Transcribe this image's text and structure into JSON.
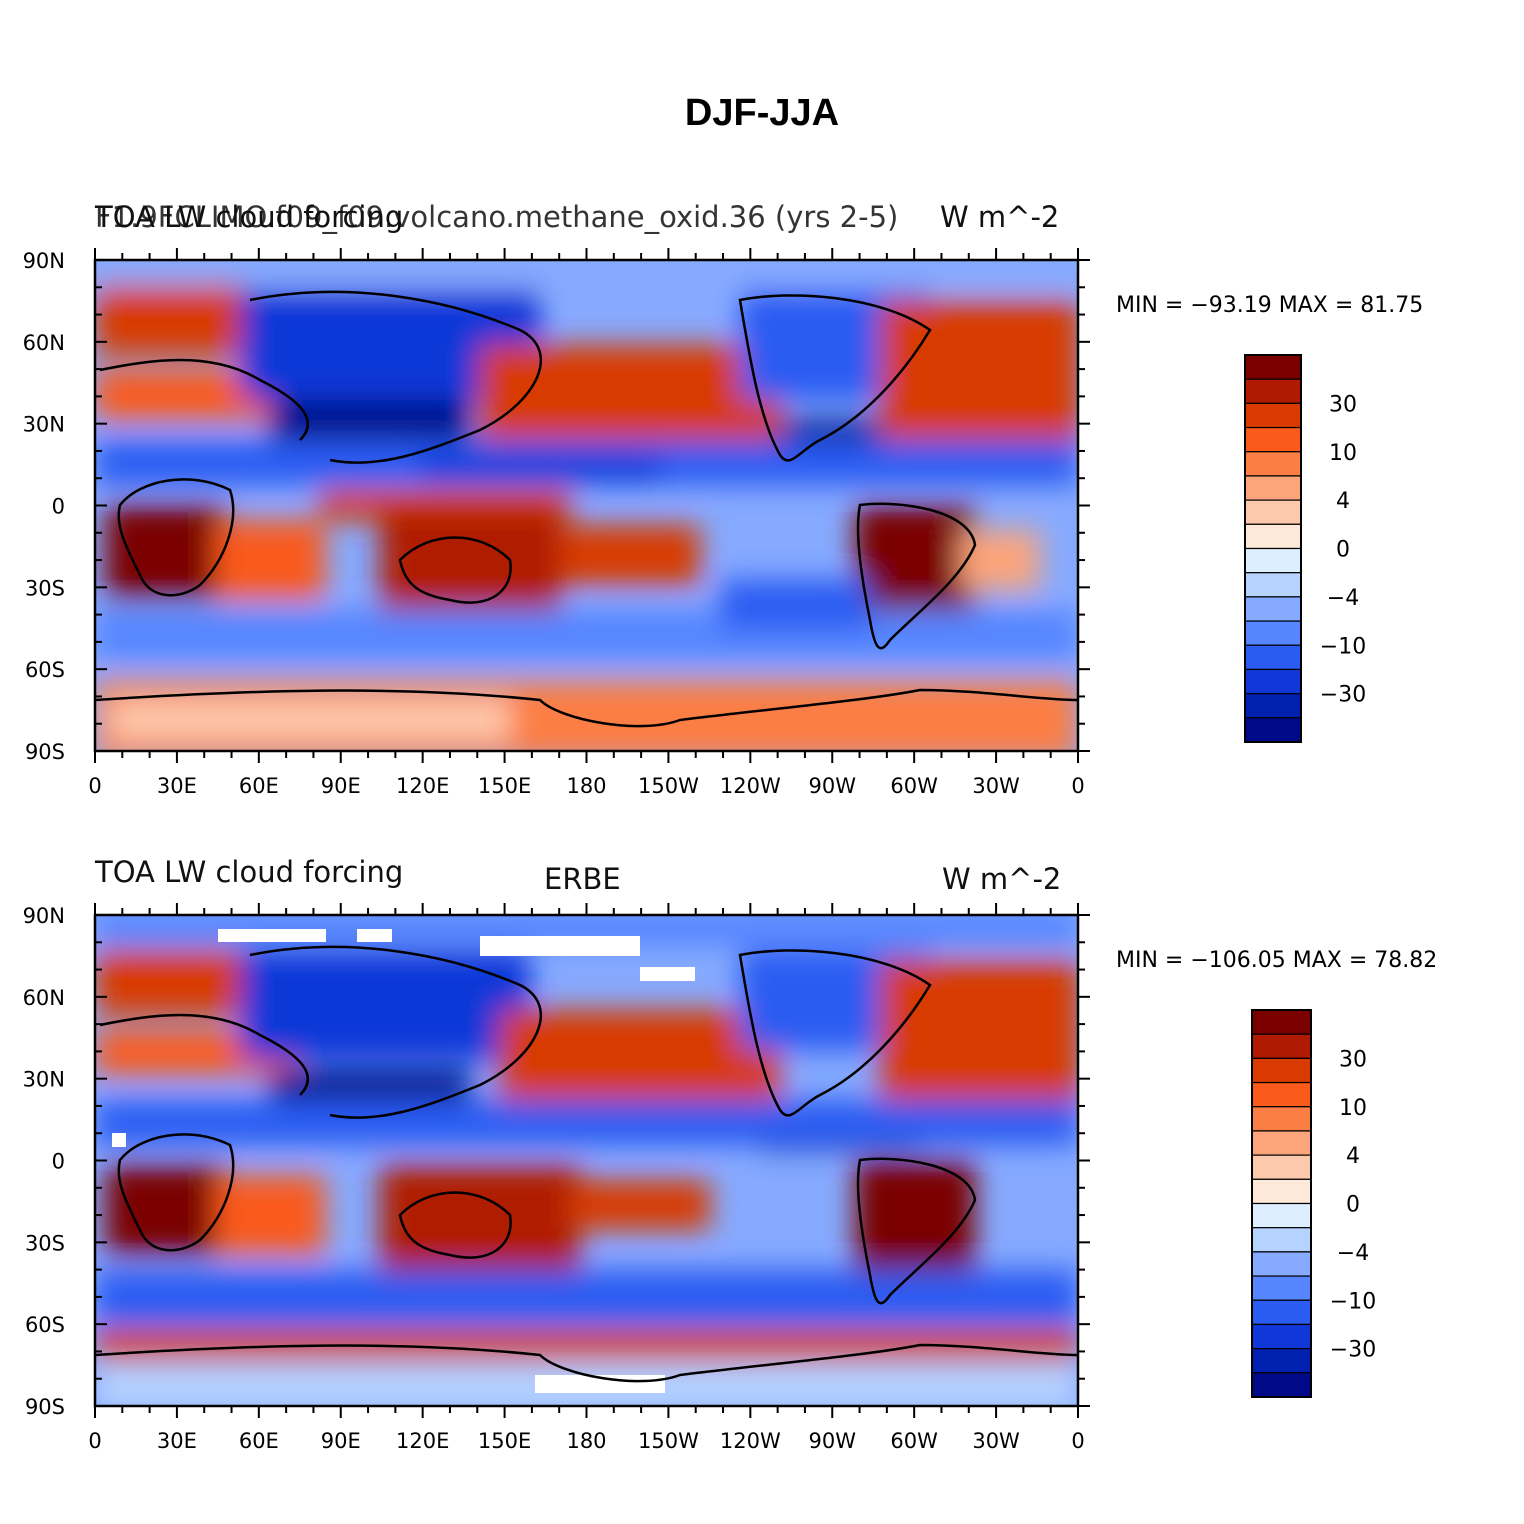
{
  "figure": {
    "title": "DJF-JJA"
  },
  "chart_data": [
    {
      "type": "heatmap",
      "title_left": "TOA LW cloud forcing",
      "title_center": "F1.9FCLIMO.f09_f09.volcano.methane_oxid.36 (yrs 2-5)",
      "title_right": "W m^-2",
      "stats": {
        "min": -93.19,
        "max": 81.75,
        "label": "MIN = −93.19  MAX =  81.75"
      },
      "x_tick_labels": [
        "0",
        "30E",
        "60E",
        "90E",
        "120E",
        "150E",
        "180",
        "150W",
        "120W",
        "90W",
        "60W",
        "30W",
        "0"
      ],
      "y_tick_labels": [
        "90N",
        "60N",
        "30N",
        "0",
        "30S",
        "60S",
        "90S"
      ],
      "xlim": [
        0,
        360
      ],
      "ylim": [
        -90,
        90
      ],
      "colorbar_labels": [
        "30",
        "10",
        "4",
        "0",
        "−4",
        "−10",
        "−30"
      ]
    },
    {
      "type": "heatmap",
      "title_left": "TOA LW cloud forcing",
      "title_center": "ERBE",
      "title_right": "W m^-2",
      "stats": {
        "min": -106.05,
        "max": 78.82,
        "label": "MIN = −106.05  MAX =  78.82"
      },
      "x_tick_labels": [
        "0",
        "30E",
        "60E",
        "90E",
        "120E",
        "150E",
        "180",
        "150W",
        "120W",
        "90W",
        "60W",
        "30W",
        "0"
      ],
      "y_tick_labels": [
        "90N",
        "60N",
        "30N",
        "0",
        "30S",
        "60S",
        "90S"
      ],
      "xlim": [
        0,
        360
      ],
      "ylim": [
        -90,
        90
      ],
      "colorbar_labels": [
        "30",
        "10",
        "4",
        "0",
        "−4",
        "−10",
        "−30"
      ]
    }
  ],
  "colorbar": {
    "levels": [
      "#7a0000",
      "#b01a00",
      "#d83a00",
      "#fa5a1a",
      "#fb7e45",
      "#fca47a",
      "#fdc9ad",
      "#fee8da",
      "#dceeff",
      "#b6d2ff",
      "#86aaff",
      "#5585ff",
      "#2a5cf2",
      "#1038d8",
      "#0020b0",
      "#000a88"
    ]
  },
  "map_palette": {
    "ocean": "#7aa5ff",
    "land": "#a8c4ff",
    "coast": "#000000"
  }
}
